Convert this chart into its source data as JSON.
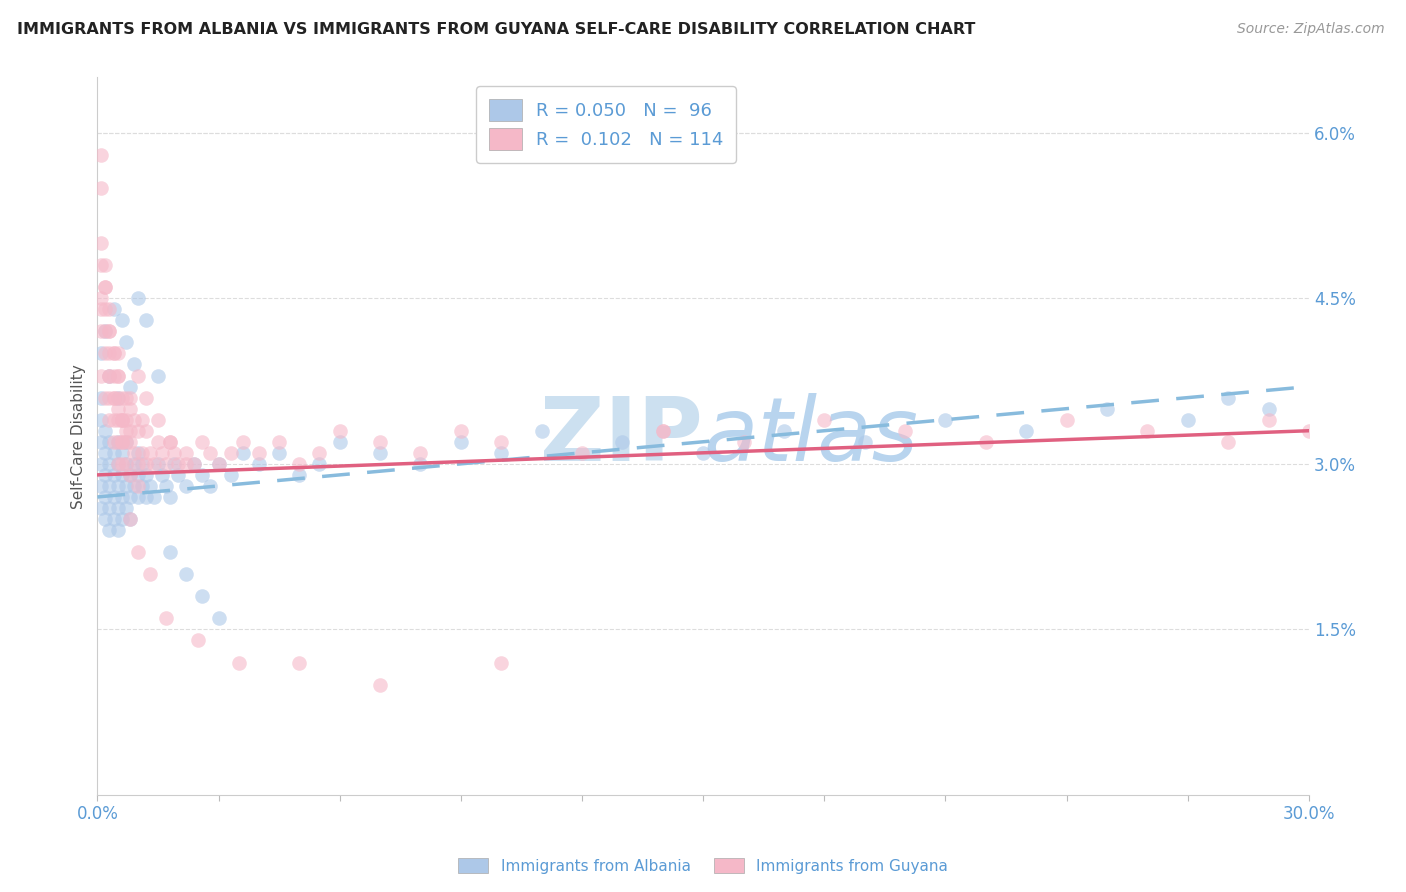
{
  "title": "IMMIGRANTS FROM ALBANIA VS IMMIGRANTS FROM GUYANA SELF-CARE DISABILITY CORRELATION CHART",
  "source": "Source: ZipAtlas.com",
  "ylabel": "Self-Care Disability",
  "right_yticks": [
    "6.0%",
    "4.5%",
    "3.0%",
    "1.5%"
  ],
  "right_ytick_vals": [
    0.06,
    0.045,
    0.03,
    0.015
  ],
  "legend_albania_R": "0.050",
  "legend_albania_N": "96",
  "legend_guyana_R": "0.102",
  "legend_guyana_N": "114",
  "albania_fill": "#adc8e8",
  "albania_edge": "#6699cc",
  "guyana_fill": "#f5b8c8",
  "guyana_edge": "#cc6688",
  "trend_albania_color": "#88bbdd",
  "trend_guyana_color": "#e06080",
  "watermark_color": "#cce0f0",
  "background_color": "#ffffff",
  "grid_color": "#dddddd",
  "xmin": 0.0,
  "xmax": 0.3,
  "ymin": 0.0,
  "ymax": 0.065,
  "albania_x": [
    0.001,
    0.001,
    0.001,
    0.001,
    0.001,
    0.001,
    0.002,
    0.002,
    0.002,
    0.002,
    0.002,
    0.003,
    0.003,
    0.003,
    0.003,
    0.003,
    0.004,
    0.004,
    0.004,
    0.004,
    0.005,
    0.005,
    0.005,
    0.005,
    0.005,
    0.006,
    0.006,
    0.006,
    0.006,
    0.007,
    0.007,
    0.007,
    0.007,
    0.008,
    0.008,
    0.008,
    0.009,
    0.009,
    0.01,
    0.01,
    0.01,
    0.011,
    0.011,
    0.012,
    0.012,
    0.013,
    0.014,
    0.015,
    0.016,
    0.017,
    0.018,
    0.019,
    0.02,
    0.022,
    0.024,
    0.026,
    0.028,
    0.03,
    0.033,
    0.036,
    0.04,
    0.045,
    0.05,
    0.055,
    0.06,
    0.07,
    0.08,
    0.09,
    0.1,
    0.11,
    0.13,
    0.15,
    0.17,
    0.19,
    0.21,
    0.23,
    0.25,
    0.27,
    0.28,
    0.29,
    0.001,
    0.002,
    0.003,
    0.004,
    0.005,
    0.006,
    0.007,
    0.008,
    0.009,
    0.01,
    0.012,
    0.015,
    0.018,
    0.022,
    0.026,
    0.03
  ],
  "albania_y": [
    0.03,
    0.032,
    0.028,
    0.034,
    0.026,
    0.036,
    0.029,
    0.031,
    0.027,
    0.033,
    0.025,
    0.028,
    0.03,
    0.026,
    0.032,
    0.024,
    0.027,
    0.029,
    0.025,
    0.031,
    0.028,
    0.03,
    0.026,
    0.032,
    0.024,
    0.029,
    0.027,
    0.031,
    0.025,
    0.028,
    0.03,
    0.026,
    0.032,
    0.027,
    0.029,
    0.025,
    0.03,
    0.028,
    0.029,
    0.027,
    0.031,
    0.028,
    0.03,
    0.027,
    0.029,
    0.028,
    0.027,
    0.03,
    0.029,
    0.028,
    0.027,
    0.03,
    0.029,
    0.028,
    0.03,
    0.029,
    0.028,
    0.03,
    0.029,
    0.031,
    0.03,
    0.031,
    0.029,
    0.03,
    0.032,
    0.031,
    0.03,
    0.032,
    0.031,
    0.033,
    0.032,
    0.031,
    0.033,
    0.032,
    0.034,
    0.033,
    0.035,
    0.034,
    0.036,
    0.035,
    0.04,
    0.042,
    0.038,
    0.044,
    0.036,
    0.043,
    0.041,
    0.037,
    0.039,
    0.045,
    0.043,
    0.038,
    0.022,
    0.02,
    0.018,
    0.016
  ],
  "guyana_x": [
    0.001,
    0.001,
    0.001,
    0.001,
    0.001,
    0.002,
    0.002,
    0.002,
    0.002,
    0.003,
    0.003,
    0.003,
    0.003,
    0.003,
    0.004,
    0.004,
    0.004,
    0.004,
    0.005,
    0.005,
    0.005,
    0.005,
    0.005,
    0.006,
    0.006,
    0.006,
    0.006,
    0.007,
    0.007,
    0.007,
    0.007,
    0.008,
    0.008,
    0.008,
    0.008,
    0.009,
    0.009,
    0.01,
    0.01,
    0.01,
    0.011,
    0.011,
    0.012,
    0.012,
    0.013,
    0.014,
    0.015,
    0.016,
    0.017,
    0.018,
    0.019,
    0.02,
    0.022,
    0.024,
    0.026,
    0.028,
    0.03,
    0.033,
    0.036,
    0.04,
    0.045,
    0.05,
    0.055,
    0.06,
    0.07,
    0.08,
    0.09,
    0.1,
    0.12,
    0.14,
    0.16,
    0.18,
    0.2,
    0.22,
    0.24,
    0.26,
    0.28,
    0.29,
    0.3,
    0.001,
    0.002,
    0.003,
    0.004,
    0.005,
    0.006,
    0.007,
    0.008,
    0.01,
    0.012,
    0.015,
    0.018,
    0.022,
    0.001,
    0.001,
    0.002,
    0.002,
    0.003,
    0.003,
    0.004,
    0.004,
    0.005,
    0.005,
    0.006,
    0.006,
    0.008,
    0.01,
    0.013,
    0.017,
    0.025,
    0.035,
    0.05,
    0.07,
    0.1,
    0.14
  ],
  "guyana_y": [
    0.05,
    0.055,
    0.058,
    0.045,
    0.042,
    0.046,
    0.04,
    0.044,
    0.048,
    0.042,
    0.038,
    0.044,
    0.036,
    0.04,
    0.038,
    0.034,
    0.04,
    0.036,
    0.035,
    0.038,
    0.032,
    0.036,
    0.034,
    0.034,
    0.03,
    0.036,
    0.032,
    0.033,
    0.036,
    0.03,
    0.034,
    0.032,
    0.035,
    0.029,
    0.033,
    0.031,
    0.034,
    0.03,
    0.033,
    0.028,
    0.031,
    0.034,
    0.03,
    0.033,
    0.031,
    0.03,
    0.032,
    0.031,
    0.03,
    0.032,
    0.031,
    0.03,
    0.031,
    0.03,
    0.032,
    0.031,
    0.03,
    0.031,
    0.032,
    0.031,
    0.032,
    0.03,
    0.031,
    0.033,
    0.032,
    0.031,
    0.033,
    0.032,
    0.031,
    0.033,
    0.032,
    0.034,
    0.033,
    0.032,
    0.034,
    0.033,
    0.032,
    0.034,
    0.033,
    0.038,
    0.036,
    0.034,
    0.032,
    0.03,
    0.034,
    0.032,
    0.036,
    0.038,
    0.036,
    0.034,
    0.032,
    0.03,
    0.044,
    0.048,
    0.042,
    0.046,
    0.038,
    0.042,
    0.036,
    0.04,
    0.04,
    0.038,
    0.034,
    0.032,
    0.025,
    0.022,
    0.02,
    0.016,
    0.014,
    0.012,
    0.012,
    0.01,
    0.012,
    0.033
  ]
}
